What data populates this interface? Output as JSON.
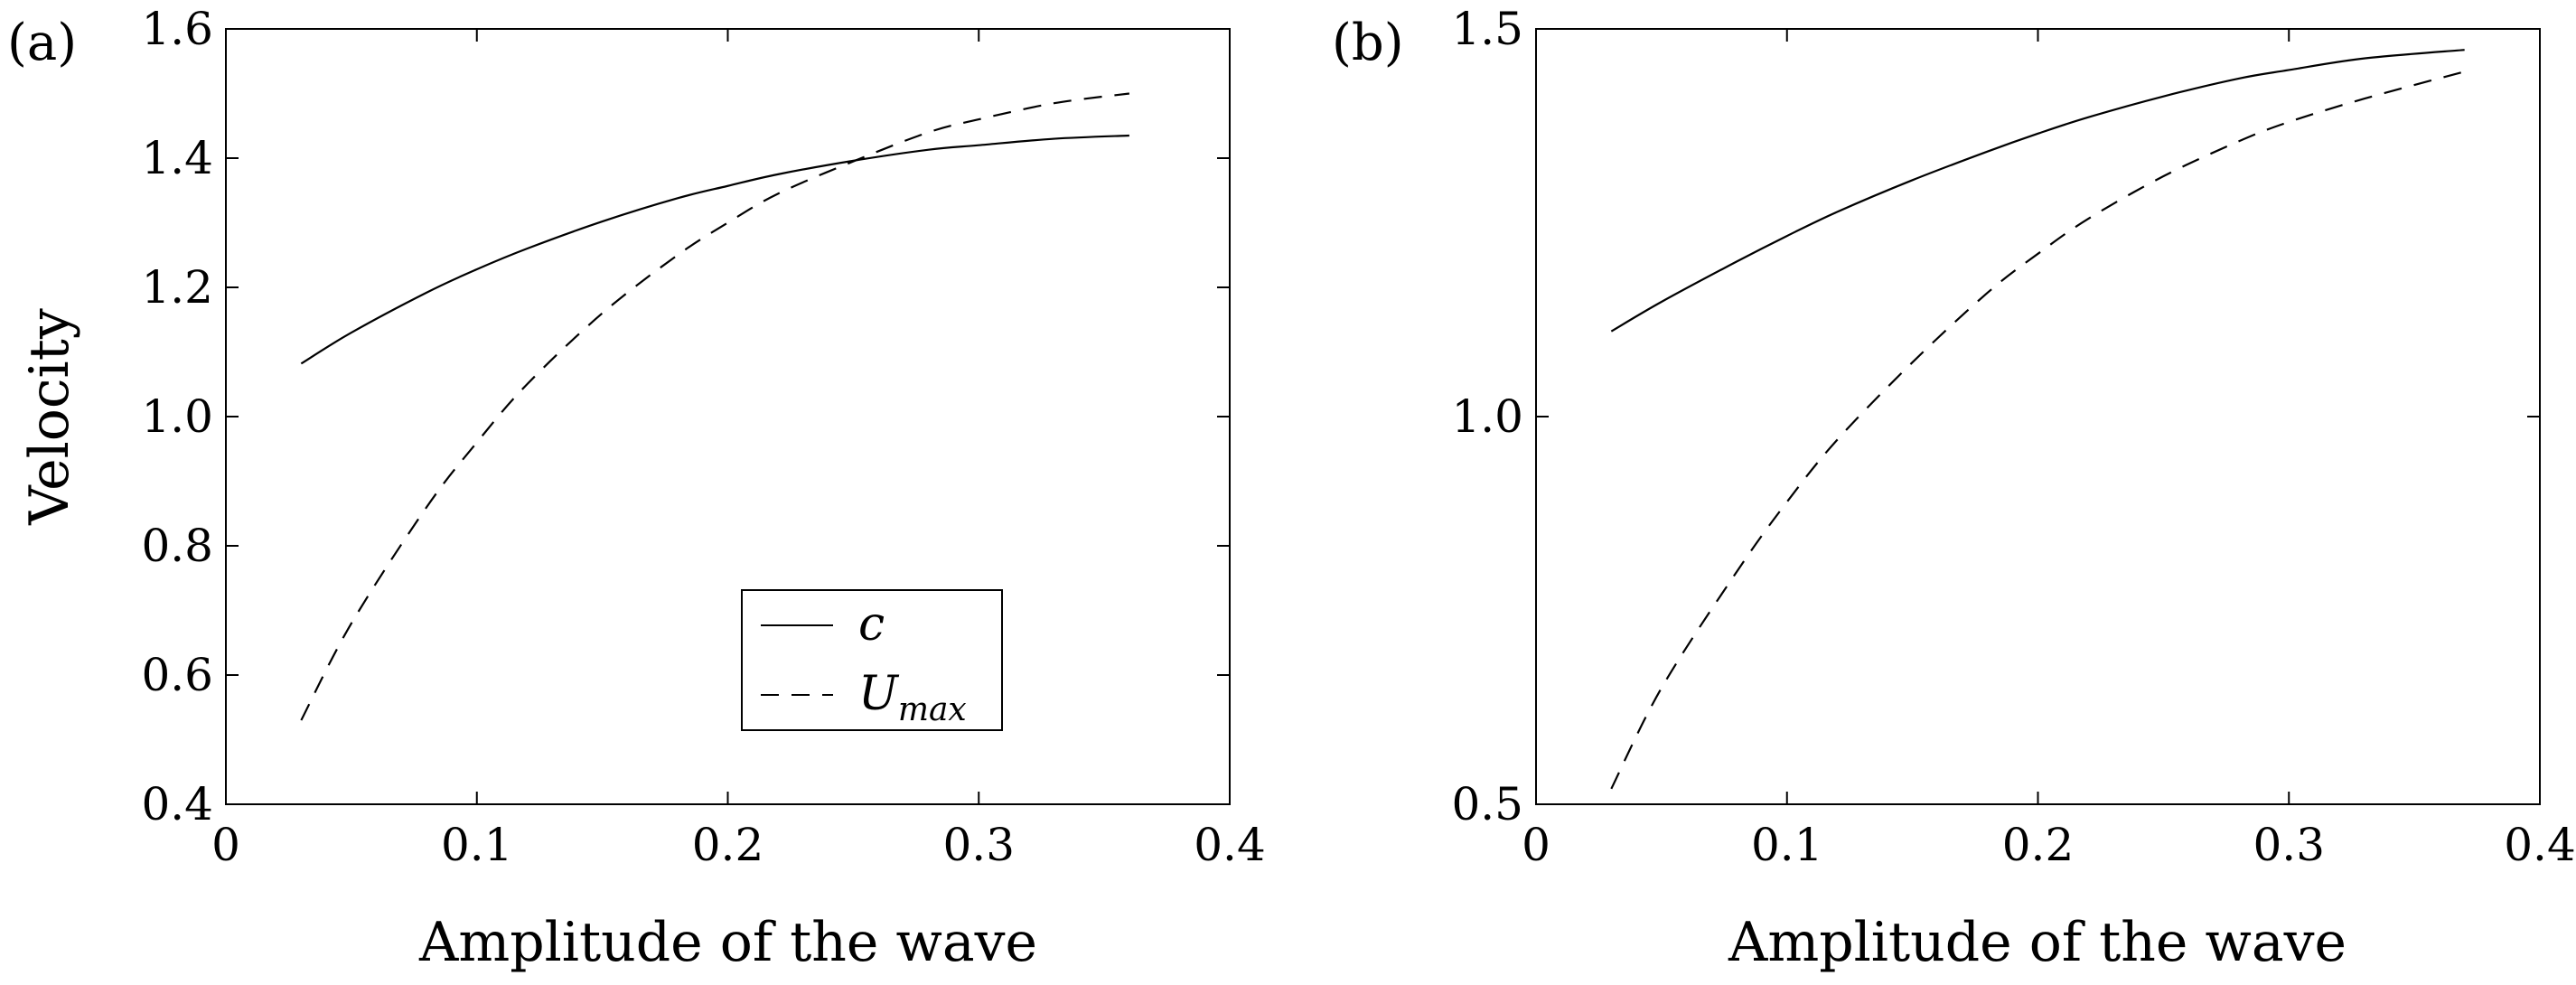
{
  "chart_data": [
    {
      "type": "line",
      "panel_label": "(a)",
      "xlabel": "Amplitude of the wave",
      "ylabel": "Velocity",
      "xlim": [
        0,
        0.4
      ],
      "ylim": [
        0.4,
        1.6
      ],
      "xticks": [
        0,
        0.1,
        0.2,
        0.3,
        0.4
      ],
      "xtick_labels": [
        "0",
        "0.1",
        "0.2",
        "0.3",
        "0.4"
      ],
      "yticks": [
        0.4,
        0.6,
        0.8,
        1.0,
        1.2,
        1.4,
        1.6
      ],
      "ytick_labels": [
        "0.4",
        "0.6",
        "0.8",
        "1.0",
        "1.2",
        "1.4",
        "1.6"
      ],
      "legend": {
        "position": "lower-right",
        "entries": [
          "c",
          "U",
          "max"
        ]
      },
      "series": [
        {
          "name": "c",
          "style": "solid",
          "x": [
            0.03,
            0.05,
            0.08,
            0.1,
            0.12,
            0.15,
            0.18,
            0.2,
            0.22,
            0.25,
            0.28,
            0.3,
            0.33,
            0.36
          ],
          "y": [
            1.082,
            1.13,
            1.192,
            1.228,
            1.26,
            1.302,
            1.338,
            1.357,
            1.375,
            1.396,
            1.413,
            1.42,
            1.43,
            1.435
          ]
        },
        {
          "name": "Umax",
          "style": "dashed",
          "x": [
            0.03,
            0.05,
            0.08,
            0.1,
            0.12,
            0.15,
            0.18,
            0.2,
            0.22,
            0.25,
            0.28,
            0.3,
            0.33,
            0.36
          ],
          "y": [
            0.53,
            0.68,
            0.86,
            0.96,
            1.05,
            1.16,
            1.25,
            1.3,
            1.345,
            1.395,
            1.44,
            1.46,
            1.485,
            1.5
          ]
        }
      ]
    },
    {
      "type": "line",
      "panel_label": "(b)",
      "xlabel": "Amplitude of the wave",
      "ylabel": "",
      "xlim": [
        0,
        0.4
      ],
      "ylim": [
        0.5,
        1.5
      ],
      "xticks": [
        0,
        0.1,
        0.2,
        0.3,
        0.4
      ],
      "xtick_labels": [
        "0",
        "0.1",
        "0.2",
        "0.3",
        "0.4"
      ],
      "yticks": [
        0.5,
        1.0,
        1.5
      ],
      "ytick_labels": [
        "0.5",
        "1.0",
        "1.5"
      ],
      "series": [
        {
          "name": "c",
          "style": "solid",
          "x": [
            0.03,
            0.05,
            0.08,
            0.1,
            0.12,
            0.15,
            0.18,
            0.2,
            0.22,
            0.25,
            0.28,
            0.3,
            0.33,
            0.37
          ],
          "y": [
            1.11,
            1.148,
            1.2,
            1.233,
            1.264,
            1.305,
            1.342,
            1.365,
            1.386,
            1.413,
            1.436,
            1.447,
            1.462,
            1.473
          ]
        },
        {
          "name": "Umax",
          "style": "dashed",
          "x": [
            0.03,
            0.05,
            0.08,
            0.1,
            0.12,
            0.15,
            0.18,
            0.2,
            0.22,
            0.25,
            0.28,
            0.3,
            0.33,
            0.37
          ],
          "y": [
            0.52,
            0.65,
            0.8,
            0.89,
            0.97,
            1.07,
            1.16,
            1.21,
            1.255,
            1.31,
            1.355,
            1.38,
            1.41,
            1.445
          ]
        }
      ]
    }
  ]
}
